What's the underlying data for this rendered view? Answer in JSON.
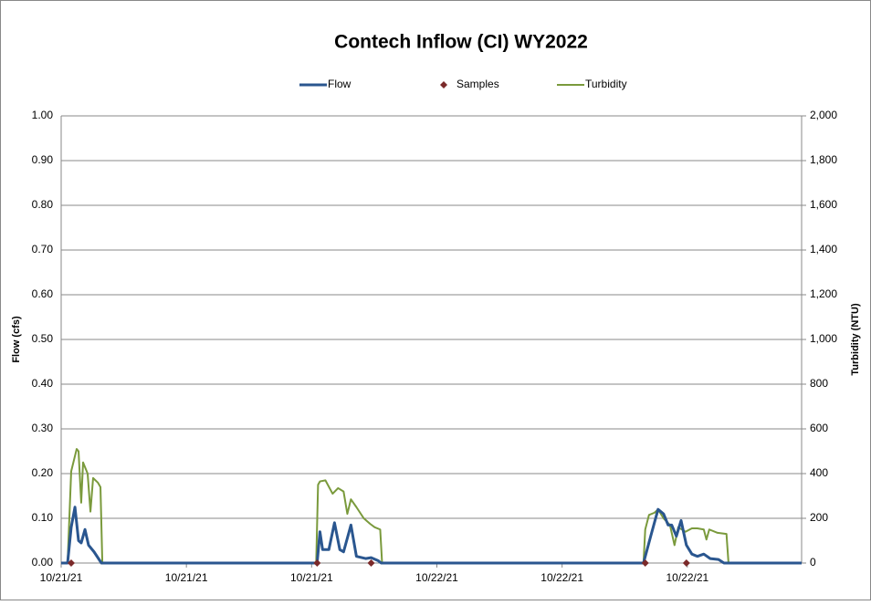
{
  "chart_data": {
    "type": "line",
    "title": "Contech Inflow (CI)  WY2022",
    "ylabel": "Flow (cfs)",
    "y2label": "Turbidity (NTU)",
    "legend": "top",
    "grid": true,
    "xlim": [
      0,
      47.3
    ],
    "xticks": [
      {
        "value": 0,
        "label": "10/21/21"
      },
      {
        "value": 8,
        "label": "10/21/21"
      },
      {
        "value": 16,
        "label": "10/21/21"
      },
      {
        "value": 24,
        "label": "10/22/21"
      },
      {
        "value": 32,
        "label": "10/22/21"
      },
      {
        "value": 40,
        "label": "10/22/21"
      }
    ],
    "ylim": [
      0,
      1
    ],
    "yticks": [
      {
        "value": 0,
        "label": "0.00"
      },
      {
        "value": 0.1,
        "label": "0.10"
      },
      {
        "value": 0.2,
        "label": "0.20"
      },
      {
        "value": 0.3,
        "label": "0.30"
      },
      {
        "value": 0.4,
        "label": "0.40"
      },
      {
        "value": 0.5,
        "label": "0.50"
      },
      {
        "value": 0.6,
        "label": "0.60"
      },
      {
        "value": 0.7,
        "label": "0.70"
      },
      {
        "value": 0.8,
        "label": "0.80"
      },
      {
        "value": 0.9,
        "label": "0.90"
      },
      {
        "value": 1,
        "label": "1.00"
      }
    ],
    "y2lim": [
      0,
      2000
    ],
    "y2ticks": [
      0,
      200,
      400,
      600,
      800,
      {
        "value": 1000,
        "label": "1,000"
      },
      {
        "value": 1200,
        "label": "1,200"
      },
      {
        "value": 1400,
        "label": "1,400"
      },
      {
        "value": 1600,
        "label": "1,600"
      },
      {
        "value": 1800,
        "label": "1,800"
      },
      {
        "value": 2000,
        "label": "2,000"
      }
    ],
    "series": [
      {
        "name": "Flow",
        "color": "#2a568f",
        "style": "line",
        "axis": "y",
        "x": [
          0,
          0.41,
          0.64,
          0.88,
          1.11,
          1.28,
          1.52,
          1.75,
          2.1,
          2.57,
          16.35,
          16.53,
          16.7,
          17.1,
          17.46,
          17.8,
          18.04,
          18.51,
          18.86,
          19.45,
          19.8,
          20.26,
          20.44,
          37.2,
          37.66,
          38.13,
          38.48,
          38.77,
          39.0,
          39.3,
          39.6,
          39.94,
          40.29,
          40.64,
          41.05,
          41.46,
          41.99,
          42.34,
          47.3
        ],
        "values": [
          0,
          0,
          0.08,
          0.125,
          0.05,
          0.045,
          0.075,
          0.04,
          0.025,
          0,
          0,
          0.07,
          0.03,
          0.03,
          0.09,
          0.03,
          0.025,
          0.085,
          0.015,
          0.01,
          0.012,
          0.005,
          0,
          0,
          0.06,
          0.12,
          0.11,
          0.085,
          0.085,
          0.06,
          0.095,
          0.04,
          0.02,
          0.015,
          0.02,
          0.01,
          0.008,
          0,
          0
        ]
      },
      {
        "name": "Samples",
        "color": "#7b2a2a",
        "style": "markers",
        "axis": "y",
        "x": [
          0.64,
          16.35,
          19.8,
          37.31,
          39.94
        ],
        "values": [
          0,
          0,
          0,
          0,
          0
        ]
      },
      {
        "name": "Turbidity",
        "color": "#7a9a3c",
        "style": "line",
        "axis": "y2",
        "x": [
          0,
          0.41,
          0.64,
          0.99,
          1.11,
          1.28,
          1.4,
          1.69,
          1.87,
          2.04,
          2.34,
          2.51,
          2.63,
          16.29,
          16.41,
          16.53,
          16.88,
          17.34,
          17.69,
          18.04,
          18.28,
          18.51,
          18.86,
          19.33,
          19.74,
          20.03,
          20.38,
          20.5,
          37.2,
          37.31,
          37.55,
          37.9,
          38.13,
          38.48,
          38.89,
          39.18,
          39.42,
          39.88,
          40.29,
          40.64,
          41.05,
          41.22,
          41.4,
          41.93,
          42.5,
          42.63,
          47.3
        ],
        "values": [
          0,
          0,
          410,
          510,
          500,
          270,
          450,
          400,
          230,
          380,
          360,
          340,
          0,
          0,
          350,
          365,
          370,
          310,
          335,
          320,
          220,
          285,
          250,
          200,
          175,
          160,
          150,
          0,
          0,
          150,
          215,
          225,
          240,
          200,
          170,
          80,
          160,
          140,
          155,
          155,
          150,
          105,
          150,
          135,
          130,
          0,
          0
        ]
      }
    ]
  }
}
